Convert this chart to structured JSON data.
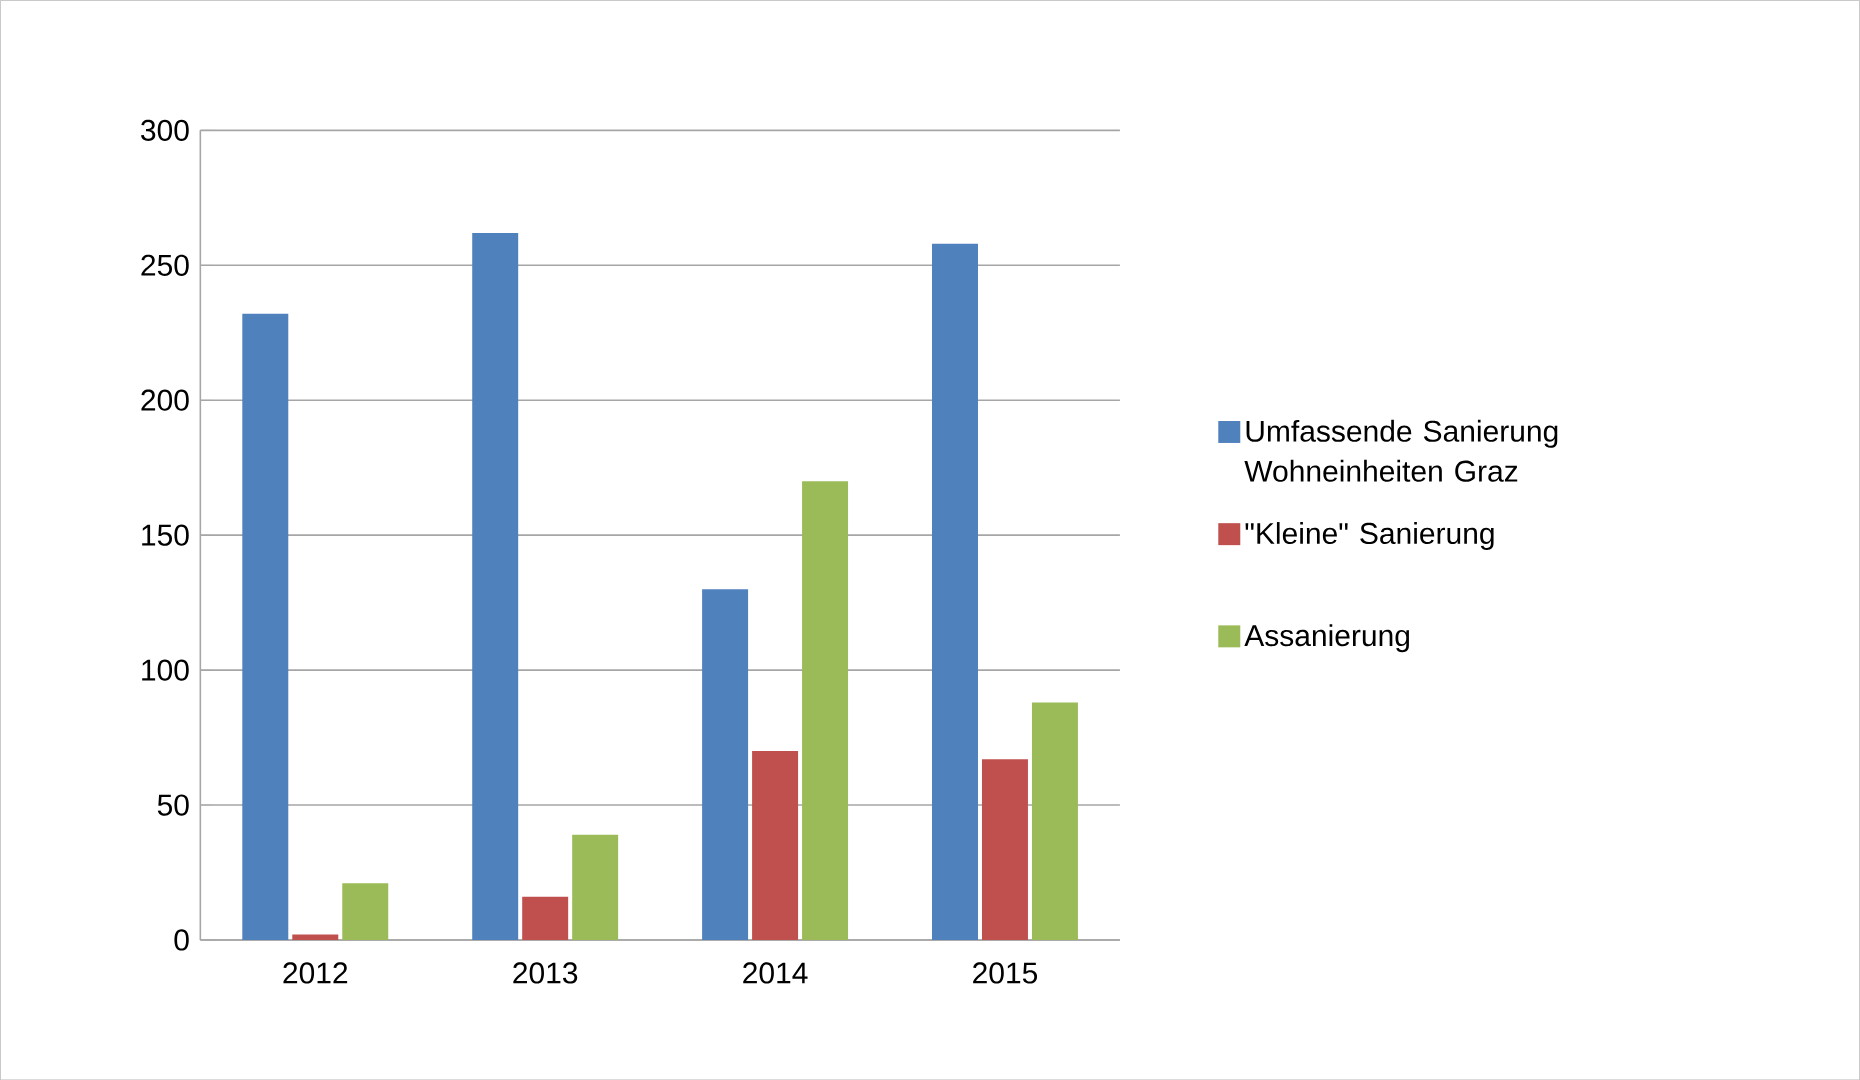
{
  "chart_data": {
    "type": "bar",
    "categories": [
      "2012",
      "2013",
      "2014",
      "2015"
    ],
    "series": [
      {
        "name": "Umfassende Sanierung Wohneinheiten Graz",
        "color": "#4f81bd",
        "values": [
          232,
          262,
          130,
          258
        ]
      },
      {
        "name": "\"Kleine\" Sanierung",
        "color": "#c0504d",
        "values": [
          2,
          16,
          70,
          67
        ]
      },
      {
        "name": "Assanierung",
        "color": "#9bbb59",
        "values": [
          21,
          39,
          170,
          88
        ]
      }
    ],
    "ylim": [
      0,
      300
    ],
    "yticks": [
      0,
      50,
      100,
      150,
      200,
      250,
      300
    ],
    "grid": "y",
    "legend": "right"
  }
}
